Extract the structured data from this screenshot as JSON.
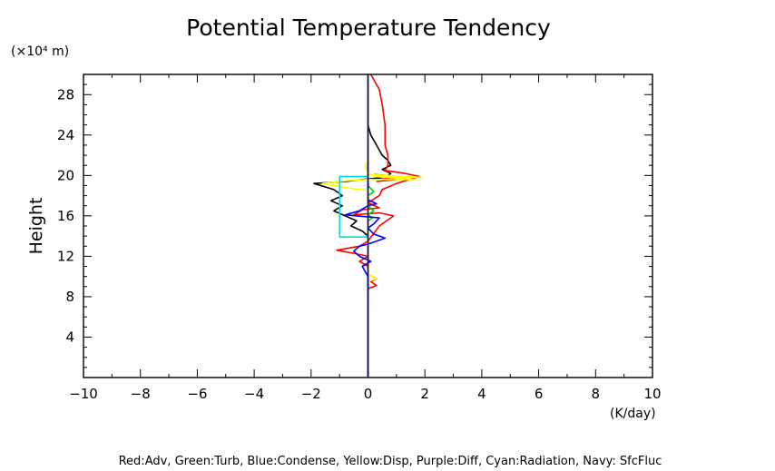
{
  "chart_data": {
    "type": "line",
    "title": "Potential Temperature Tendency",
    "ylabel": "Height",
    "yunit": "(×10⁴ m)",
    "xunit": "(K/day)",
    "xlim": [
      -10,
      10
    ],
    "ylim": [
      0,
      30
    ],
    "xticks": [
      -10,
      -8,
      -6,
      -4,
      -2,
      0,
      2,
      4,
      6,
      8,
      10
    ],
    "yticks": [
      4,
      8,
      12,
      16,
      20,
      24,
      28
    ],
    "grid": false,
    "legend_text": "Red:Adv, Green:Turb, Blue:Condense, Yellow:Disp, Purple:Diff, Cyan:Radiation, Navy: SfcFluc",
    "series": [
      {
        "color": "#000000",
        "points": [
          [
            0,
            0
          ],
          [
            0,
            14
          ],
          [
            -0.2,
            14.5
          ],
          [
            -0.6,
            15
          ],
          [
            -0.4,
            15.5
          ],
          [
            -0.8,
            16
          ],
          [
            -1.2,
            16.5
          ],
          [
            -0.9,
            17
          ],
          [
            -1.3,
            17.5
          ],
          [
            -0.9,
            18
          ],
          [
            -1.2,
            18.6
          ],
          [
            -1.9,
            19.2
          ],
          [
            -0.8,
            19.4
          ],
          [
            -0.2,
            19.6
          ],
          [
            0.6,
            19.8
          ],
          [
            0.8,
            20.2
          ],
          [
            0.5,
            20.6
          ],
          [
            0.8,
            21
          ],
          [
            0.7,
            21.5
          ],
          [
            0.5,
            22
          ],
          [
            0.3,
            23
          ],
          [
            0.1,
            24
          ],
          [
            0,
            25
          ],
          [
            0,
            30
          ]
        ]
      },
      {
        "color": "#ff0000",
        "points": [
          [
            0,
            8.8
          ],
          [
            0.3,
            9.1
          ],
          [
            0.1,
            9.5
          ],
          [
            0.3,
            9.8
          ],
          [
            0,
            10.2
          ],
          [
            0,
            11
          ],
          [
            -0.3,
            11.5
          ],
          [
            0,
            12
          ],
          [
            -0.5,
            12.3
          ],
          [
            -1.1,
            12.6
          ],
          [
            -0.3,
            13
          ],
          [
            0,
            13.5
          ],
          [
            0.4,
            15
          ],
          [
            0.9,
            16
          ],
          [
            0.4,
            16.3
          ],
          [
            -0.5,
            16.1
          ],
          [
            -0.2,
            16.6
          ],
          [
            0.4,
            16.8
          ],
          [
            0,
            17.3
          ],
          [
            0.4,
            18
          ],
          [
            0.5,
            18.6
          ],
          [
            1.0,
            19.2
          ],
          [
            1.8,
            19.9
          ],
          [
            1.3,
            20.2
          ],
          [
            0.6,
            20.5
          ],
          [
            0.7,
            21
          ],
          [
            0.7,
            22
          ],
          [
            0.6,
            23
          ],
          [
            0.6,
            25
          ],
          [
            0.5,
            27
          ],
          [
            0.4,
            28.5
          ],
          [
            0.2,
            29.5
          ],
          [
            0.1,
            30
          ]
        ]
      },
      {
        "color": "#ff0000",
        "points": [
          [
            0.3,
            19.4
          ],
          [
            1.0,
            19.6
          ],
          [
            0.5,
            19.8
          ],
          [
            1.1,
            19.9
          ],
          [
            0.2,
            20.1
          ]
        ]
      },
      {
        "color": "#00cc00",
        "points": [
          [
            0,
            14
          ],
          [
            0,
            15.5
          ],
          [
            0.15,
            15.8
          ],
          [
            0,
            16.1
          ],
          [
            0.2,
            16.5
          ],
          [
            0,
            17
          ],
          [
            0,
            18
          ],
          [
            0.2,
            18.4
          ],
          [
            0,
            19
          ]
        ]
      },
      {
        "color": "#0000ff",
        "points": [
          [
            0,
            8.5
          ],
          [
            0,
            10
          ],
          [
            -0.2,
            11
          ],
          [
            0.1,
            11.5
          ],
          [
            -0.3,
            12
          ],
          [
            -0.5,
            12.5
          ],
          [
            -0.3,
            13
          ],
          [
            0,
            13.2
          ],
          [
            0.3,
            13.5
          ],
          [
            0.6,
            13.8
          ],
          [
            0.2,
            14.2
          ],
          [
            0,
            14.8
          ],
          [
            0.2,
            15.2
          ],
          [
            0.4,
            15.8
          ],
          [
            -0.8,
            16.1
          ],
          [
            -0.3,
            16.5
          ],
          [
            0,
            17
          ],
          [
            0.3,
            17.2
          ],
          [
            0,
            17.6
          ],
          [
            0,
            30
          ]
        ]
      },
      {
        "color": "#ffff00",
        "points": [
          [
            0,
            9.5
          ],
          [
            0.3,
            9.8
          ],
          [
            0,
            10.2
          ],
          [
            0,
            18.5
          ],
          [
            -0.8,
            18.8
          ],
          [
            -1.6,
            19.2
          ],
          [
            -0.7,
            19.5
          ],
          [
            0,
            19.6
          ],
          [
            1.7,
            19.6
          ],
          [
            0.2,
            19.9
          ],
          [
            1.9,
            19.8
          ],
          [
            0,
            20.1
          ],
          [
            -0.1,
            21
          ],
          [
            0,
            21.5
          ],
          [
            0,
            30
          ]
        ]
      },
      {
        "color": "#00e0e0",
        "points": [
          [
            0,
            13.9
          ],
          [
            -1.0,
            13.9
          ],
          [
            -1.0,
            19.9
          ],
          [
            0,
            19.9
          ]
        ]
      },
      {
        "color": "#000080",
        "points": [
          [
            0,
            0
          ],
          [
            0,
            30
          ]
        ]
      }
    ]
  }
}
